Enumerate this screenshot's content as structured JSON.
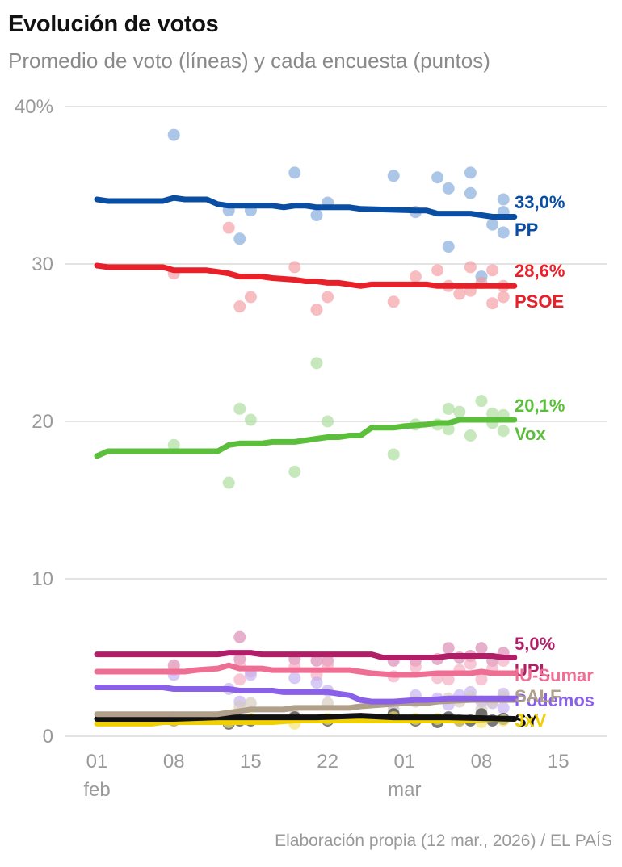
{
  "header": {
    "title": "Evolución de votos",
    "subtitle": "Promedio de voto (líneas) y cada encuesta (puntos)"
  },
  "footer": {
    "source": "Elaboración propia (12 mar., 2026) / EL PAÍS"
  },
  "chart_data": {
    "type": "line",
    "title": "Evolución de votos",
    "subtitle": "Promedio de voto (líneas) y cada encuesta (puntos)",
    "ylim": [
      0,
      40
    ],
    "yticks": [
      {
        "value": 0,
        "label": "0"
      },
      {
        "value": 10,
        "label": "10"
      },
      {
        "value": 20,
        "label": "20"
      },
      {
        "value": 30,
        "label": "30"
      },
      {
        "value": 40,
        "label": "40%"
      }
    ],
    "xlim": [
      0,
      47
    ],
    "xticks": [
      {
        "day": 1,
        "label": "01",
        "sub": "feb"
      },
      {
        "day": 8,
        "label": "08",
        "sub": ""
      },
      {
        "day": 15,
        "label": "15",
        "sub": ""
      },
      {
        "day": 22,
        "label": "22",
        "sub": ""
      },
      {
        "day": 29,
        "label": "01",
        "sub": "mar"
      },
      {
        "day": 36,
        "label": "08",
        "sub": ""
      },
      {
        "day": 43,
        "label": "15",
        "sub": ""
      }
    ],
    "series": [
      {
        "name": "PP",
        "value_label": "33,0%",
        "color": "#0a4ea3",
        "dot_color": "#7ea7d8",
        "line": [
          [
            1,
            34.1
          ],
          [
            2,
            34.0
          ],
          [
            7,
            34.0
          ],
          [
            8,
            34.2
          ],
          [
            9,
            34.1
          ],
          [
            11,
            34.1
          ],
          [
            12,
            33.8
          ],
          [
            13,
            33.7
          ],
          [
            17,
            33.7
          ],
          [
            18,
            33.6
          ],
          [
            19,
            33.7
          ],
          [
            20,
            33.7
          ],
          [
            21,
            33.6
          ],
          [
            24,
            33.6
          ],
          [
            25,
            33.5
          ],
          [
            30,
            33.4
          ],
          [
            31,
            33.4
          ],
          [
            32,
            33.2
          ],
          [
            33,
            33.2
          ],
          [
            35,
            33.2
          ],
          [
            36,
            33.1
          ],
          [
            37,
            33.0
          ],
          [
            39,
            33.0
          ]
        ],
        "polls": [
          [
            8,
            38.2
          ],
          [
            13,
            33.4
          ],
          [
            14,
            31.6
          ],
          [
            15,
            33.4
          ],
          [
            19,
            35.8
          ],
          [
            21,
            33.1
          ],
          [
            22,
            33.9
          ],
          [
            28,
            35.6
          ],
          [
            30,
            33.3
          ],
          [
            32,
            35.5
          ],
          [
            33,
            34.8
          ],
          [
            33,
            31.1
          ],
          [
            35,
            35.8
          ],
          [
            35,
            34.5
          ],
          [
            36,
            29.2
          ],
          [
            37,
            32.5
          ],
          [
            38,
            34.1
          ],
          [
            38,
            33.3
          ],
          [
            38,
            32.0
          ]
        ]
      },
      {
        "name": "PSOE",
        "value_label": "28,6%",
        "color": "#e8202a",
        "dot_color": "#f29a9e",
        "line": [
          [
            1,
            29.9
          ],
          [
            2,
            29.8
          ],
          [
            7,
            29.8
          ],
          [
            8,
            29.6
          ],
          [
            11,
            29.6
          ],
          [
            13,
            29.4
          ],
          [
            14,
            29.2
          ],
          [
            16,
            29.2
          ],
          [
            17,
            29.1
          ],
          [
            19,
            29.0
          ],
          [
            20,
            28.9
          ],
          [
            21,
            28.9
          ],
          [
            22,
            28.8
          ],
          [
            23,
            28.8
          ],
          [
            25,
            28.6
          ],
          [
            26,
            28.7
          ],
          [
            31,
            28.7
          ],
          [
            32,
            28.6
          ],
          [
            39,
            28.6
          ]
        ],
        "polls": [
          [
            8,
            29.4
          ],
          [
            13,
            32.3
          ],
          [
            14,
            27.3
          ],
          [
            15,
            27.9
          ],
          [
            19,
            29.8
          ],
          [
            21,
            27.1
          ],
          [
            22,
            27.9
          ],
          [
            28,
            27.6
          ],
          [
            30,
            29.2
          ],
          [
            32,
            29.6
          ],
          [
            33,
            28.6
          ],
          [
            34,
            28.1
          ],
          [
            35,
            29.8
          ],
          [
            35,
            28.3
          ],
          [
            36,
            28.8
          ],
          [
            37,
            27.5
          ],
          [
            37,
            29.6
          ],
          [
            38,
            28.6
          ],
          [
            38,
            27.9
          ]
        ]
      },
      {
        "name": "Vox",
        "value_label": "20,1%",
        "color": "#5cbf3c",
        "dot_color": "#a8dc98",
        "line": [
          [
            1,
            17.8
          ],
          [
            2,
            18.1
          ],
          [
            12,
            18.1
          ],
          [
            13,
            18.5
          ],
          [
            14,
            18.6
          ],
          [
            16,
            18.6
          ],
          [
            17,
            18.7
          ],
          [
            19,
            18.7
          ],
          [
            21,
            18.9
          ],
          [
            22,
            19.0
          ],
          [
            23,
            19.0
          ],
          [
            24,
            19.1
          ],
          [
            25,
            19.1
          ],
          [
            26,
            19.6
          ],
          [
            28,
            19.6
          ],
          [
            29,
            19.7
          ],
          [
            31,
            19.8
          ],
          [
            32,
            19.9
          ],
          [
            33,
            19.9
          ],
          [
            34,
            20.1
          ],
          [
            39,
            20.1
          ]
        ],
        "polls": [
          [
            8,
            18.5
          ],
          [
            13,
            16.1
          ],
          [
            14,
            20.8
          ],
          [
            15,
            20.1
          ],
          [
            19,
            16.8
          ],
          [
            21,
            23.7
          ],
          [
            22,
            20.0
          ],
          [
            28,
            17.9
          ],
          [
            30,
            19.8
          ],
          [
            32,
            19.8
          ],
          [
            33,
            20.8
          ],
          [
            33,
            19.5
          ],
          [
            34,
            20.6
          ],
          [
            35,
            19.1
          ],
          [
            36,
            21.3
          ],
          [
            37,
            20.5
          ],
          [
            37,
            19.9
          ],
          [
            38,
            20.4
          ],
          [
            38,
            19.4
          ]
        ]
      },
      {
        "name": "UPL",
        "value_label": "5,0%",
        "color": "#b01e67",
        "dot_color": "#d884b0",
        "line": [
          [
            1,
            5.2
          ],
          [
            12,
            5.2
          ],
          [
            13,
            5.3
          ],
          [
            15,
            5.3
          ],
          [
            16,
            5.2
          ],
          [
            26,
            5.2
          ],
          [
            27,
            5.0
          ],
          [
            32,
            5.0
          ],
          [
            33,
            5.1
          ],
          [
            37,
            5.1
          ],
          [
            38,
            5.0
          ],
          [
            39,
            5.0
          ]
        ],
        "polls": [
          [
            8,
            4.5
          ],
          [
            14,
            6.3
          ],
          [
            14,
            4.9
          ],
          [
            19,
            4.9
          ],
          [
            21,
            4.8
          ],
          [
            22,
            4.8
          ],
          [
            28,
            4.8
          ],
          [
            30,
            4.8
          ],
          [
            32,
            4.9
          ],
          [
            33,
            5.6
          ],
          [
            34,
            5.0
          ],
          [
            35,
            5.1
          ],
          [
            36,
            5.6
          ],
          [
            37,
            4.8
          ],
          [
            38,
            5.3
          ]
        ]
      },
      {
        "name": "IU-Sumar",
        "value_label": "",
        "color": "#ef6f94",
        "dot_color": "#f3a9c0",
        "line": [
          [
            1,
            4.1
          ],
          [
            9,
            4.1
          ],
          [
            10,
            4.2
          ],
          [
            12,
            4.3
          ],
          [
            13,
            4.5
          ],
          [
            14,
            4.3
          ],
          [
            16,
            4.3
          ],
          [
            17,
            4.2
          ],
          [
            24,
            4.2
          ],
          [
            26,
            4.0
          ],
          [
            28,
            3.9
          ],
          [
            30,
            3.9
          ],
          [
            32,
            4.0
          ],
          [
            35,
            4.0
          ],
          [
            36,
            4.1
          ],
          [
            37,
            4.0
          ],
          [
            39,
            4.0
          ]
        ],
        "polls": [
          [
            8,
            4.2
          ],
          [
            14,
            4.5
          ],
          [
            14,
            3.6
          ],
          [
            15,
            4.1
          ],
          [
            19,
            4.4
          ],
          [
            21,
            3.9
          ],
          [
            22,
            4.5
          ],
          [
            28,
            3.8
          ],
          [
            30,
            4.4
          ],
          [
            32,
            3.7
          ],
          [
            33,
            3.6
          ],
          [
            34,
            4.2
          ],
          [
            35,
            4.6
          ],
          [
            36,
            3.6
          ],
          [
            37,
            4.3
          ],
          [
            38,
            4.8
          ]
        ]
      },
      {
        "name": "Podemos",
        "value_label": "",
        "color": "#8a60e8",
        "dot_color": "#c3aef2",
        "line": [
          [
            1,
            3.1
          ],
          [
            7,
            3.1
          ],
          [
            8,
            3.0
          ],
          [
            13,
            3.0
          ],
          [
            14,
            2.9
          ],
          [
            17,
            2.9
          ],
          [
            18,
            2.8
          ],
          [
            22,
            2.8
          ],
          [
            23,
            2.7
          ],
          [
            24,
            2.6
          ],
          [
            25,
            2.3
          ],
          [
            26,
            2.2
          ],
          [
            28,
            2.2
          ],
          [
            30,
            2.3
          ],
          [
            31,
            2.3
          ],
          [
            33,
            2.4
          ],
          [
            39,
            2.4
          ]
        ],
        "polls": [
          [
            8,
            3.9
          ],
          [
            13,
            3.0
          ],
          [
            14,
            2.2
          ],
          [
            15,
            3.9
          ],
          [
            19,
            3.7
          ],
          [
            21,
            3.4
          ],
          [
            22,
            2.9
          ],
          [
            28,
            2.0
          ],
          [
            30,
            2.6
          ],
          [
            32,
            2.4
          ],
          [
            33,
            2.0
          ],
          [
            34,
            2.6
          ],
          [
            35,
            2.8
          ],
          [
            36,
            2.2
          ],
          [
            37,
            2.1
          ],
          [
            38,
            2.7
          ],
          [
            38,
            1.8
          ]
        ]
      },
      {
        "name": "SALF",
        "value_label": "",
        "color": "#b0a08a",
        "dot_color": "#d3c9bc",
        "line": [
          [
            1,
            1.4
          ],
          [
            12,
            1.4
          ],
          [
            13,
            1.5
          ],
          [
            14,
            1.6
          ],
          [
            15,
            1.7
          ],
          [
            18,
            1.7
          ],
          [
            19,
            1.8
          ],
          [
            24,
            1.8
          ],
          [
            25,
            1.9
          ],
          [
            27,
            2.0
          ],
          [
            29,
            2.1
          ],
          [
            31,
            2.1
          ],
          [
            32,
            2.2
          ],
          [
            35,
            2.3
          ],
          [
            39,
            2.3
          ]
        ],
        "polls": [
          [
            8,
            1.2
          ],
          [
            14,
            1.9
          ],
          [
            15,
            2.1
          ],
          [
            19,
            1.3
          ],
          [
            22,
            2.1
          ],
          [
            28,
            1.7
          ],
          [
            30,
            2.2
          ],
          [
            33,
            2.4
          ],
          [
            34,
            2.2
          ],
          [
            35,
            2.5
          ],
          [
            36,
            1.7
          ],
          [
            37,
            2.2
          ],
          [
            38,
            2.5
          ]
        ]
      },
      {
        "name": "SY",
        "value_label": "",
        "color": "#111111",
        "dot_color": "#333333",
        "line": [
          [
            1,
            1.1
          ],
          [
            8,
            1.1
          ],
          [
            12,
            1.2
          ],
          [
            20,
            1.2
          ],
          [
            21,
            1.2
          ],
          [
            25,
            1.3
          ],
          [
            28,
            1.2
          ],
          [
            33,
            1.2
          ],
          [
            39,
            1.1
          ]
        ],
        "polls": [
          [
            8,
            1.0
          ],
          [
            13,
            0.8
          ],
          [
            14,
            1.0
          ],
          [
            15,
            1.0
          ],
          [
            19,
            1.2
          ],
          [
            22,
            1.0
          ],
          [
            28,
            1.4
          ],
          [
            30,
            1.0
          ],
          [
            32,
            0.9
          ],
          [
            33,
            1.2
          ],
          [
            34,
            1.0
          ],
          [
            35,
            1.0
          ],
          [
            36,
            1.4
          ],
          [
            37,
            1.0
          ],
          [
            38,
            1.1
          ]
        ]
      },
      {
        "name": "JxV",
        "value_label": "",
        "color": "#f0d000",
        "dot_color": "#f5e46a",
        "line": [
          [
            1,
            0.8
          ],
          [
            6,
            0.8
          ],
          [
            7,
            0.9
          ],
          [
            12,
            0.9
          ],
          [
            17,
            0.9
          ],
          [
            19,
            1.0
          ],
          [
            30,
            1.0
          ],
          [
            32,
            1.0
          ],
          [
            35,
            1.0
          ],
          [
            37,
            1.1
          ],
          [
            39,
            1.1
          ]
        ],
        "polls": [
          [
            8,
            1.0
          ],
          [
            13,
            0.9
          ],
          [
            15,
            1.1
          ],
          [
            19,
            0.8
          ],
          [
            22,
            1.1
          ],
          [
            28,
            1.2
          ],
          [
            30,
            1.1
          ],
          [
            32,
            1.1
          ],
          [
            34,
            1.0
          ],
          [
            36,
            0.9
          ],
          [
            38,
            1.0
          ]
        ]
      }
    ]
  }
}
